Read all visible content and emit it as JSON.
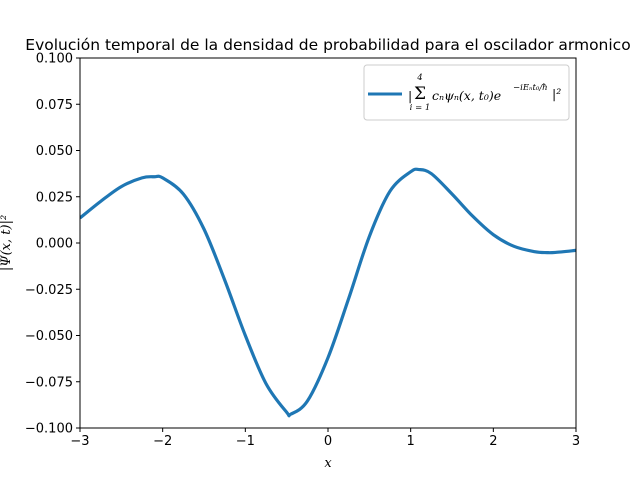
{
  "chart_data": {
    "type": "line",
    "title": "Evolución temporal de la densidad de probabilidad para el oscilador armonico",
    "xlabel": "x",
    "ylabel": "|Ψ(x, t)|²",
    "xlim": [
      -3,
      3
    ],
    "ylim": [
      -0.1,
      0.1
    ],
    "xticks": [
      -3,
      -2,
      -1,
      0,
      1,
      2,
      3
    ],
    "xtick_labels": [
      "−3",
      "−2",
      "−1",
      "0",
      "1",
      "2",
      "3"
    ],
    "yticks": [
      -0.1,
      -0.075,
      -0.05,
      -0.025,
      0.0,
      0.025,
      0.05,
      0.075,
      0.1
    ],
    "ytick_labels": [
      "−0.100",
      "−0.075",
      "−0.050",
      "−0.025",
      "0.000",
      "0.025",
      "0.050",
      "0.075",
      "0.100"
    ],
    "grid": false,
    "legend_position": "top-right",
    "series": [
      {
        "name": "|Σ_{i=1}^{4} c_n ψ_n(x, t_0) e^{−iE_n t_0/ħ}|²",
        "color": "#1f77b4",
        "x": [
          -3.0,
          -2.75,
          -2.5,
          -2.25,
          -2.1,
          -2.0,
          -1.75,
          -1.5,
          -1.25,
          -1.0,
          -0.75,
          -0.5,
          -0.45,
          -0.25,
          0.0,
          0.25,
          0.5,
          0.75,
          1.0,
          1.1,
          1.25,
          1.5,
          1.75,
          2.0,
          2.25,
          2.5,
          2.65,
          2.75,
          3.0
        ],
        "y": [
          0.0135,
          0.0225,
          0.0305,
          0.0352,
          0.0358,
          0.0352,
          0.0265,
          0.0075,
          -0.02,
          -0.05,
          -0.076,
          -0.0915,
          -0.0925,
          -0.0855,
          -0.062,
          -0.03,
          0.0035,
          0.028,
          0.0385,
          0.0397,
          0.0375,
          0.0265,
          0.0145,
          0.0045,
          -0.0018,
          -0.0047,
          -0.0052,
          -0.0051,
          -0.004
        ]
      }
    ],
    "legend": {
      "sum_symbol": "Σ",
      "sum_upper": "4",
      "sum_lower": "i = 1",
      "expression": "cₙψₙ(x, t₀)e",
      "exponent": "−iEₙt₀/ħ",
      "closing": "|²",
      "opening": "|"
    }
  }
}
